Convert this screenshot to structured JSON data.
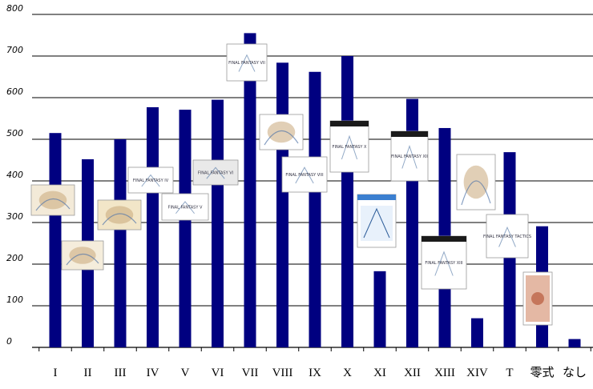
{
  "chart_data": {
    "type": "bar",
    "categories": [
      "I",
      "II",
      "III",
      "IV",
      "V",
      "VI",
      "VII",
      "VIII",
      "IX",
      "X",
      "XI",
      "XII",
      "XIII",
      "XIV",
      "T",
      "零式",
      "なし"
    ],
    "values": [
      515,
      452,
      500,
      577,
      571,
      595,
      755,
      684,
      662,
      700,
      183,
      597,
      527,
      70,
      469,
      291,
      20
    ],
    "title": "",
    "xlabel": "",
    "ylabel": "",
    "ylim": [
      0,
      800
    ],
    "yticks": [
      0,
      100,
      200,
      300,
      400,
      500,
      600,
      700,
      800
    ],
    "grid": true,
    "legend": "none",
    "bar_color": "#000080",
    "covers": [
      {
        "label": "FINAL FANTASY VII"
      },
      {
        "label": "FINAL FANTASY VIII"
      },
      {
        "label": "FINAL FANTASY IX"
      },
      {
        "label": "FINAL FANTASY X"
      },
      {
        "label": "FINAL FANTASY XII"
      },
      {
        "label": "FINAL FANTASY XIII"
      },
      {
        "label": "FINAL FANTASY TACTICS"
      },
      {
        "label": "FINAL FANTASY IV"
      },
      {
        "label": "FINAL FANTASY V"
      },
      {
        "label": "FINAL FANTASY VI"
      }
    ]
  }
}
